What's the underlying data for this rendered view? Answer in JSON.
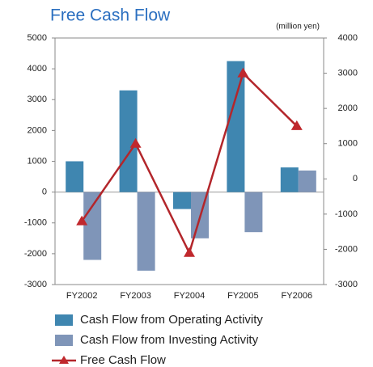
{
  "chart_data": {
    "type": "bar",
    "title": "Free Cash Flow",
    "unit_label": "(million yen)",
    "categories": [
      "FY2002",
      "FY2003",
      "FY2004",
      "FY2005",
      "FY2006"
    ],
    "series": [
      {
        "name": "Cash Flow from Operating Activity",
        "color": "#3f86b0",
        "type": "bar",
        "values": [
          1000,
          3300,
          -550,
          4250,
          800
        ]
      },
      {
        "name": "Cash Flow from Investing Activity",
        "color": "#7f95b8",
        "type": "bar",
        "values": [
          -2200,
          -2550,
          -1500,
          -1300,
          700
        ]
      },
      {
        "name": "Free Cash Flow",
        "color": "#b3262b",
        "type": "line",
        "axis": "y2",
        "values": [
          -1200,
          1000,
          -2100,
          3000,
          1500
        ]
      }
    ],
    "ylim": [
      -3000,
      5000
    ],
    "yticks": [
      -3000,
      -2000,
      -1000,
      0,
      1000,
      2000,
      3000,
      4000,
      5000
    ],
    "y2lim": [
      -3000,
      4000
    ],
    "y2ticks": [
      -3000,
      -2000,
      -1000,
      0,
      1000,
      2000,
      3000,
      4000
    ]
  }
}
